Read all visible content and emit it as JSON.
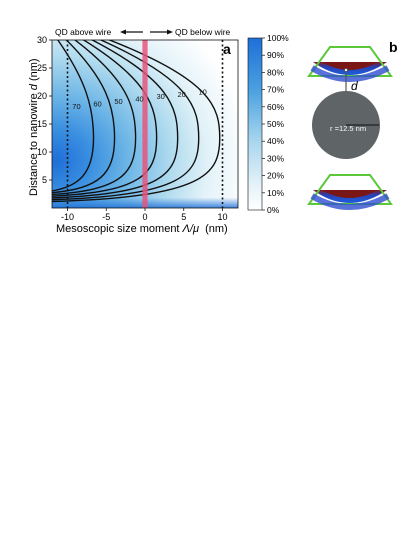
{
  "panel_a": {
    "label": "a",
    "annot_left": "QD above wire",
    "annot_right": "QD below wire",
    "xlabel_prefix": "Mesoscopic size moment ",
    "xlabel_var": "Λ/μ",
    "xlabel_unit": "  (nm)",
    "ylabel_prefix": "Distance to nanowire ",
    "ylabel_var": "d",
    "ylabel_unit": " (nm)"
  },
  "panel_b": {
    "label": "b",
    "distance_label": "d",
    "radius_label": "r =12.5 nm"
  },
  "colorbar": {
    "ticks": [
      "100%",
      "90%",
      "80%",
      "70%",
      "60%",
      "50%",
      "40%",
      "30%",
      "20%",
      "10%",
      "0%"
    ]
  },
  "chart_data": {
    "type": "heatmap",
    "xlabel": "Mesoscopic size moment Λ/μ  (nm)",
    "ylabel": "Distance to nanowire d (nm)",
    "xlim": [
      -12,
      12
    ],
    "ylim": [
      0,
      30
    ],
    "x_ticks": [
      -10,
      -5,
      0,
      5,
      10
    ],
    "y_ticks": [
      5,
      10,
      15,
      20,
      25,
      30
    ],
    "colorbar_range": [
      "0%",
      "100%"
    ],
    "contour_levels": [
      10,
      20,
      30,
      40,
      50,
      60,
      70
    ],
    "contour_labels": [
      "10",
      "20",
      "30",
      "40",
      "50",
      "60",
      "70"
    ],
    "vertical_reference_lines": [
      {
        "x": -10,
        "style": "dotted"
      },
      {
        "x": 10,
        "style": "dotted"
      },
      {
        "x": 0,
        "style": "solid-red-band"
      }
    ],
    "colors": {
      "low": "#ffffff",
      "high": "#1f6fd8",
      "band": "#e8557a"
    }
  }
}
